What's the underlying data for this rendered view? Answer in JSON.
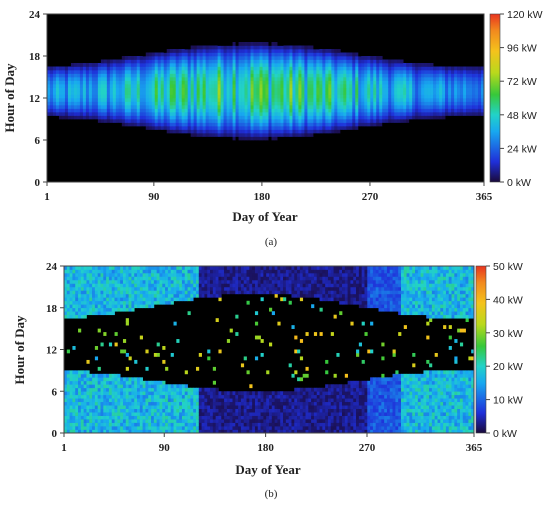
{
  "colors": {
    "background": "#000000",
    "colormap": [
      "#1a0a3a",
      "#1f2fd9",
      "#18a8f0",
      "#22d2c8",
      "#37c83a",
      "#b9d91c",
      "#f5c21c",
      "#f28a1e",
      "#e8341f"
    ]
  },
  "chart_data": [
    {
      "type": "heatmap",
      "caption": "(a)",
      "xlabel": "Day of Year",
      "ylabel": "Hour of Day",
      "xlim": [
        1,
        365
      ],
      "ylim": [
        0,
        24
      ],
      "xticks": [
        1,
        90,
        180,
        270,
        365
      ],
      "yticks": [
        0,
        6,
        12,
        18,
        24
      ],
      "colorbar": {
        "min": 0,
        "max": 120,
        "ticks": [
          "0 kW",
          "24 kW",
          "48 kW",
          "72 kW",
          "96 kW",
          "120 kW"
        ]
      },
      "profile": {
        "peak_kw": 80,
        "peak_day": 172,
        "peak_hour": 13,
        "daylight_hours_winter": [
          9,
          16.5
        ],
        "daylight_hours_summer": [
          6,
          20
        ]
      }
    },
    {
      "type": "heatmap",
      "caption": "(b)",
      "xlabel": "Day of Year",
      "ylabel": "Hour of Day",
      "xlim": [
        1,
        365
      ],
      "ylim": [
        0,
        24
      ],
      "xticks": [
        1,
        90,
        180,
        270,
        365
      ],
      "yticks": [
        0,
        6,
        12,
        18,
        24
      ],
      "colorbar": {
        "min": 0,
        "max": 50,
        "ticks": [
          "0 kW",
          "10 kW",
          "20 kW",
          "30 kW",
          "40 kW",
          "50 kW"
        ]
      },
      "profile": {
        "night_load_kw_winter": 17,
        "night_load_kw_summer": 5,
        "low_season_days": [
          120,
          300
        ],
        "block_days": [
          270,
          300
        ]
      }
    }
  ]
}
